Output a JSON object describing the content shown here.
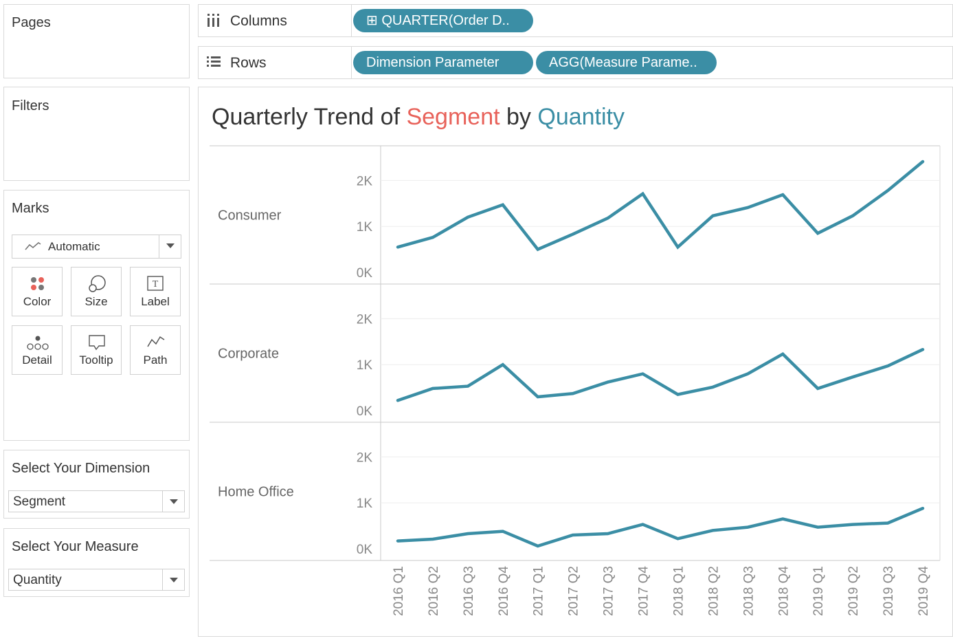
{
  "left_panel": {
    "pages_label": "Pages",
    "filters_label": "Filters",
    "marks": {
      "label": "Marks",
      "type_value": "Automatic",
      "buttons": [
        {
          "label": "Color",
          "icon": "color-dots-icon"
        },
        {
          "label": "Size",
          "icon": "size-circles-icon"
        },
        {
          "label": "Label",
          "icon": "text-label-icon"
        },
        {
          "label": "Detail",
          "icon": "detail-dots-icon"
        },
        {
          "label": "Tooltip",
          "icon": "tooltip-speech-icon"
        },
        {
          "label": "Path",
          "icon": "path-line-icon"
        }
      ]
    },
    "dimension": {
      "label": "Select Your Dimension",
      "value": "Segment"
    },
    "measure": {
      "label": "Select Your Measure",
      "value": "Quantity"
    }
  },
  "shelves": {
    "columns": {
      "label": "Columns",
      "icon": "columns-icon",
      "pills": [
        "⊞ QUARTER(Order D.."
      ]
    },
    "rows": {
      "label": "Rows",
      "icon": "rows-icon",
      "pills": [
        "Dimension Parameter",
        "AGG(Measure Parame.."
      ]
    }
  },
  "viz": {
    "title_part1": "Quarterly Trend of ",
    "title_part2": "Segment",
    "title_part3": " by ",
    "title_part4": "Quantity"
  },
  "colors": {
    "accent": "#3b8ea5",
    "title_highlight_segment": "#e8625a",
    "title_highlight_measure": "#3b8ea5",
    "line": "#3b8ea5"
  },
  "chart_data": {
    "type": "line",
    "x": [
      "2016 Q1",
      "2016 Q2",
      "2016 Q3",
      "2016 Q4",
      "2017 Q1",
      "2017 Q2",
      "2017 Q3",
      "2017 Q4",
      "2018 Q1",
      "2018 Q2",
      "2018 Q3",
      "2018 Q4",
      "2019 Q1",
      "2019 Q2",
      "2019 Q3",
      "2019 Q4"
    ],
    "ylim": [
      0,
      2500
    ],
    "yticks": [
      0,
      1000,
      2000
    ],
    "ytick_labels": [
      "0K",
      "1K",
      "2K"
    ],
    "panels": [
      {
        "name": "Consumer",
        "values": [
          550,
          760,
          1200,
          1470,
          500,
          830,
          1180,
          1710,
          550,
          1230,
          1410,
          1690,
          850,
          1230,
          1780,
          2410
        ]
      },
      {
        "name": "Corporate",
        "values": [
          220,
          480,
          530,
          1000,
          300,
          370,
          620,
          800,
          350,
          510,
          800,
          1230,
          480,
          730,
          970,
          1330
        ]
      },
      {
        "name": "Home Office",
        "values": [
          170,
          210,
          330,
          380,
          60,
          300,
          330,
          530,
          220,
          400,
          470,
          650,
          470,
          530,
          560,
          880
        ]
      }
    ]
  }
}
